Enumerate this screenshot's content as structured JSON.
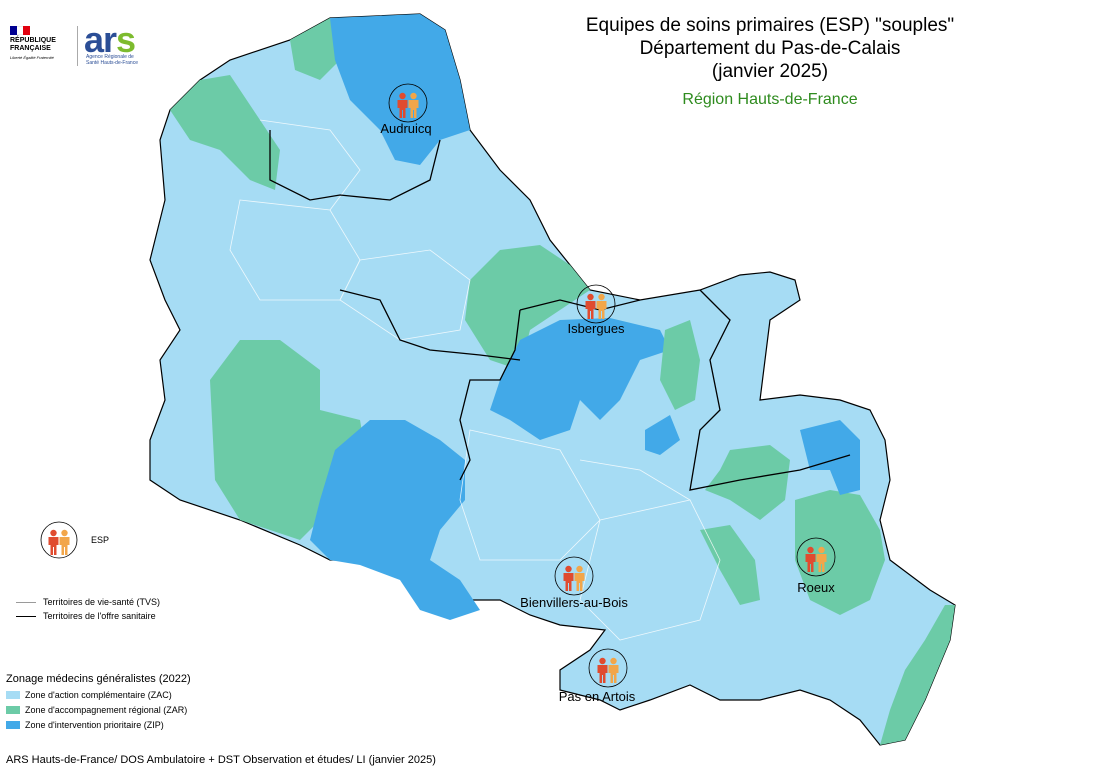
{
  "header": {
    "title_lines": [
      "Equipes de soins primaires (ESP) \"souples\"",
      "Département du Pas-de-Calais",
      "(janvier 2025)"
    ],
    "region": "Région Hauts-de-France"
  },
  "logos": {
    "rf_name_line1": "RÉPUBLIQUE",
    "rf_name_line2": "FRANÇAISE",
    "rf_motto": "Liberté Égalité Fraternité",
    "ars_text_main": "ar",
    "ars_text_s": "s",
    "ars_sub": "Agence Régionale de Santé Hauts-de-France"
  },
  "esp_sites": [
    {
      "name": "Audruicq"
    },
    {
      "name": "Isbergues"
    },
    {
      "name": "Bienvillers-au-Bois"
    },
    {
      "name": "Roeux"
    },
    {
      "name": "Pas en Artois"
    }
  ],
  "legend": {
    "esp_label": "ESP",
    "lines": [
      {
        "label": "Territoires de vie-santé (TVS)",
        "color": "#9a9a9a"
      },
      {
        "label": "Territoires de l'offre sanitaire",
        "color": "#000000"
      }
    ],
    "zoning_title": "Zonage médecins généralistes (2022)",
    "zones": [
      {
        "label": "Zone d'action complémentaire (ZAC)",
        "color": "#a6dcf4"
      },
      {
        "label": "Zone d'accompagnement régional (ZAR)",
        "color": "#6ccba7"
      },
      {
        "label": "Zone d'intervention prioritaire (ZIP)",
        "color": "#42a9e8"
      }
    ]
  },
  "colors": {
    "icon_red": "#e04b2f",
    "icon_orange": "#f2a64a"
  },
  "source": "ARS Hauts-de-France/ DOS Ambulatoire + DST Observation et études/ LI (janvier 2025)"
}
